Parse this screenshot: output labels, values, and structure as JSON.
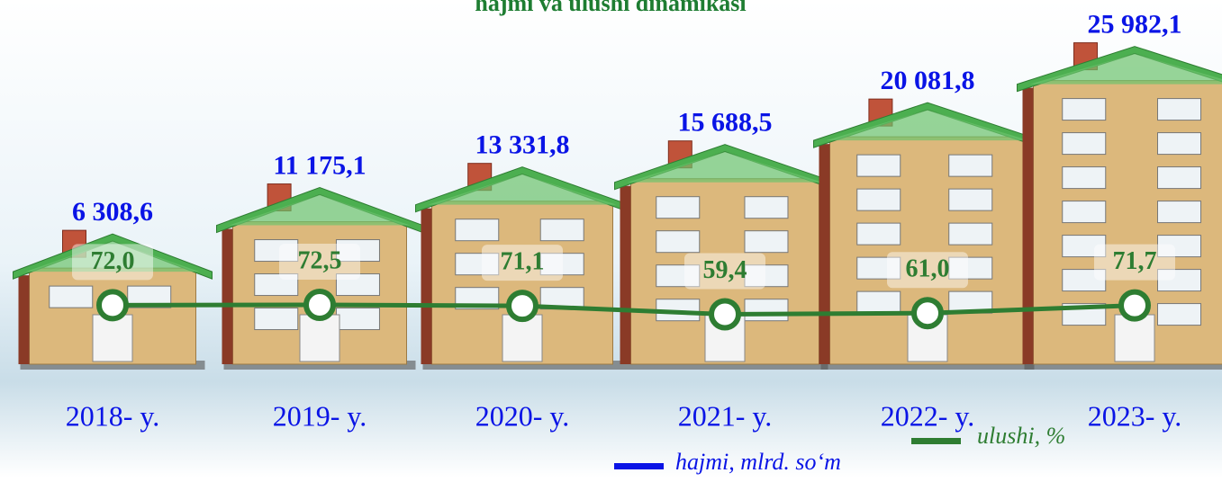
{
  "chart_data": {
    "type": "bar",
    "title": "hajmi va ulushi dinamikasi",
    "categories": [
      "2018- y.",
      "2019- y.",
      "2020- y.",
      "2021- y.",
      "2022- y.",
      "2023- y."
    ],
    "series": [
      {
        "name": "hajmi, mlrd. so‘m",
        "color": "#0a14e6",
        "values": [
          6308.6,
          11175.1,
          13331.8,
          15688.5,
          20081.8,
          25982.1
        ],
        "value_labels": [
          "6 308,6",
          "11 175,1",
          "13 331,8",
          "15 688,5",
          "20 081,8",
          "25 982,1"
        ]
      },
      {
        "name": "ulushi, %",
        "color": "#2e7d32",
        "type": "line",
        "values": [
          72.0,
          72.5,
          71.1,
          59.4,
          61.0,
          71.7
        ],
        "value_labels": [
          "72,0",
          "72,5",
          "71,1",
          "59,4",
          "61,0",
          "71,7"
        ]
      }
    ]
  }
}
